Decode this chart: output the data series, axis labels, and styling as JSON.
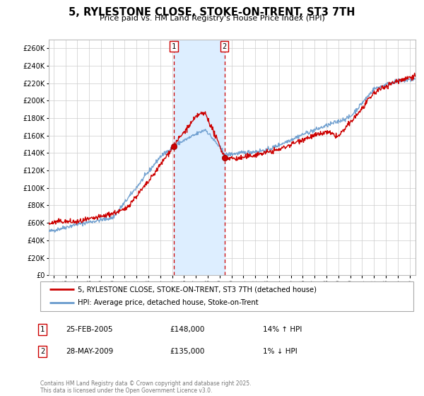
{
  "title": "5, RYLESTONE CLOSE, STOKE-ON-TRENT, ST3 7TH",
  "subtitle": "Price paid vs. HM Land Registry's House Price Index (HPI)",
  "legend_line1": "5, RYLESTONE CLOSE, STOKE-ON-TRENT, ST3 7TH (detached house)",
  "legend_line2": "HPI: Average price, detached house, Stoke-on-Trent",
  "sale1_label": "1",
  "sale2_label": "2",
  "sale1_date": "25-FEB-2005",
  "sale1_price": 148000,
  "sale1_price_str": "£148,000",
  "sale1_hpi": "14% ↑ HPI",
  "sale2_date": "28-MAY-2009",
  "sale2_price": 135000,
  "sale2_price_str": "£135,000",
  "sale2_hpi": "1% ↓ HPI",
  "sale1_x": 2005.13,
  "sale2_x": 2009.41,
  "line_color_price": "#cc0000",
  "line_color_hpi": "#6699cc",
  "shade_color": "#ddeeff",
  "vline_color": "#cc0000",
  "grid_color": "#cccccc",
  "bg_color": "#ffffff",
  "ylim": [
    0,
    270000
  ],
  "xlim": [
    1994.6,
    2025.5
  ],
  "yticks": [
    0,
    20000,
    40000,
    60000,
    80000,
    100000,
    120000,
    140000,
    160000,
    180000,
    200000,
    220000,
    240000,
    260000
  ],
  "footer": "Contains HM Land Registry data © Crown copyright and database right 2025.\nThis data is licensed under the Open Government Licence v3.0.",
  "seed": 42
}
